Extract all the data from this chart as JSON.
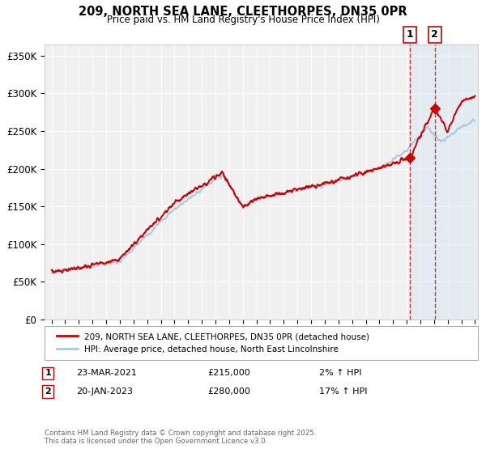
{
  "title": "209, NORTH SEA LANE, CLEETHORPES, DN35 0PR",
  "subtitle": "Price paid vs. HM Land Registry's House Price Index (HPI)",
  "ylabel_ticks": [
    "£0",
    "£50K",
    "£100K",
    "£150K",
    "£200K",
    "£250K",
    "£300K",
    "£350K"
  ],
  "ytick_values": [
    0,
    50000,
    100000,
    150000,
    200000,
    250000,
    300000,
    350000
  ],
  "ylim": [
    0,
    365000
  ],
  "xlim_start": 1994.5,
  "xlim_end": 2026.2,
  "line1_color": "#cc0000",
  "line2_color": "#aac8e0",
  "line1_label": "209, NORTH SEA LANE, CLEETHORPES, DN35 0PR (detached house)",
  "line2_label": "HPI: Average price, detached house, North East Lincolnshire",
  "marker1_date": 2021.22,
  "marker1_price": 215000,
  "marker2_date": 2023.05,
  "marker2_price": 280000,
  "vline_color": "#cc0000",
  "shade_color": "#cce0f0",
  "background_color": "#ffffff",
  "plot_bg_color": "#f0f0f0",
  "grid_color": "#ffffff",
  "footer": "Contains HM Land Registry data © Crown copyright and database right 2025.\nThis data is licensed under the Open Government Licence v3.0."
}
